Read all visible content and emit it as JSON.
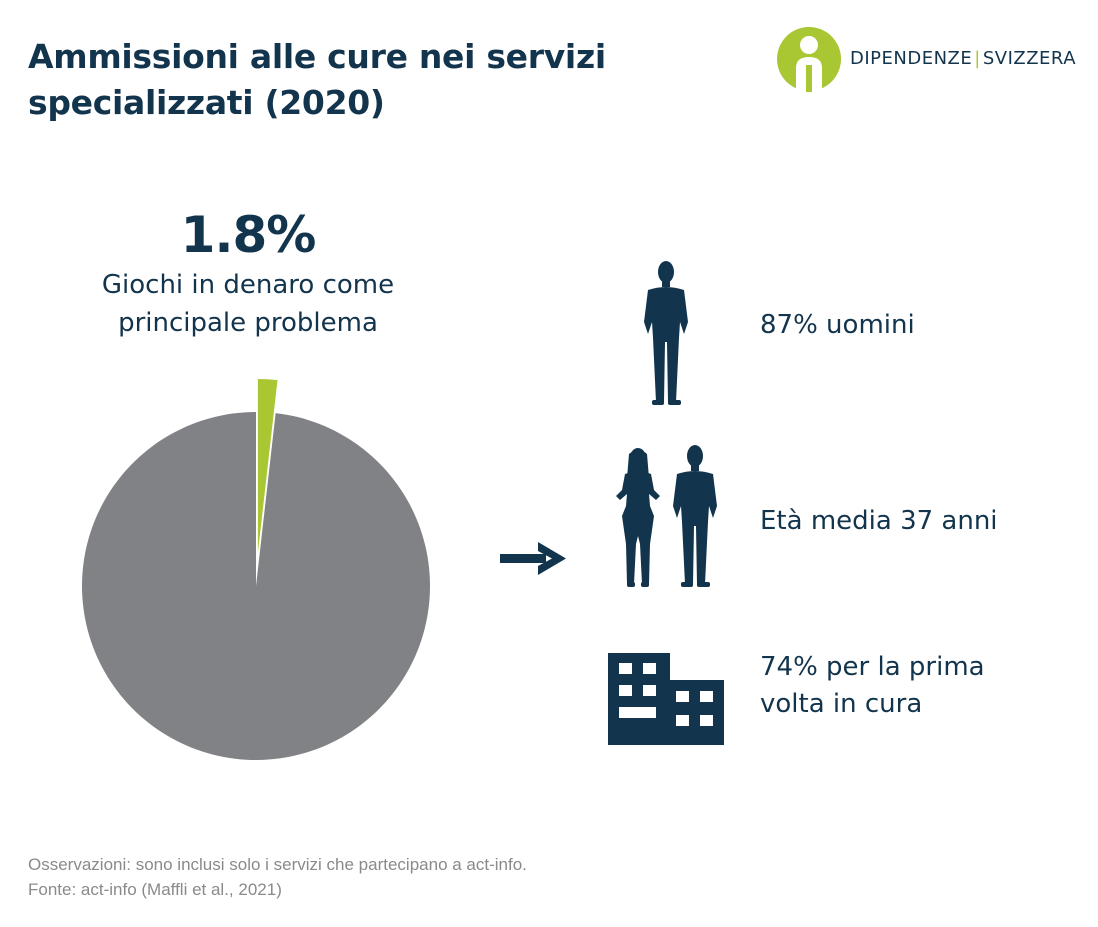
{
  "title": "Ammissioni alle cure nei servizi specializzati (2020)",
  "logo": {
    "left_text": "DIPENDENZE",
    "separator": "|",
    "right_text": "SVIZZERA",
    "icon": "person-info-icon"
  },
  "highlight": {
    "value": "1.8%",
    "label_line1": "Giochi in denaro come",
    "label_line2": "principale problema"
  },
  "chart_data": {
    "type": "pie",
    "title": "",
    "slices": [
      {
        "name": "Giochi in denaro come principale problema",
        "value": 1.8,
        "color": "#a9c733",
        "exploded": true
      },
      {
        "name": "",
        "value": 98.2,
        "color": "#808285",
        "exploded": false
      }
    ],
    "start": "top",
    "direction": "clockwise"
  },
  "stats": [
    {
      "icon": "man-silhouette-icon",
      "line1": "87% uomini",
      "line2": ""
    },
    {
      "icon": "woman-and-man-silhouette-icon",
      "line1": "Età media 37 anni",
      "line2": ""
    },
    {
      "icon": "building-icon",
      "line1": "74% per la prima",
      "line2": "volta in cura"
    }
  ],
  "arrow_icon": "right-arrow-icon",
  "notes": {
    "line1": "Osservazioni: sono inclusi solo i servizi che partecipano a act-info.",
    "line2": "Fonte: act-info (Maffli et al., 2021)"
  },
  "colors": {
    "navy": "#12344d",
    "green": "#a9c733",
    "grey": "#808285",
    "note": "#8a8a8a"
  }
}
